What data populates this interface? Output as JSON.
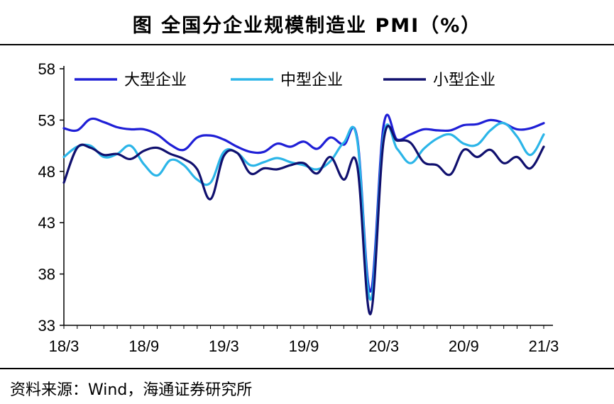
{
  "title": "图  全国分企业规模制造业 PMI（%）",
  "source": "资料来源：Wind，海通证券研究所",
  "chart_data": {
    "type": "line",
    "ylim": [
      33,
      58
    ],
    "yticks": [
      "33",
      "38",
      "43",
      "48",
      "53",
      "58"
    ],
    "xticks": [
      "18/3",
      "18/9",
      "19/3",
      "19/9",
      "20/3",
      "20/9",
      "21/3"
    ],
    "x": [
      "18/3",
      "18/4",
      "18/5",
      "18/6",
      "18/7",
      "18/8",
      "18/9",
      "18/10",
      "18/11",
      "18/12",
      "19/1",
      "19/2",
      "19/3",
      "19/4",
      "19/5",
      "19/6",
      "19/7",
      "19/8",
      "19/9",
      "19/10",
      "19/11",
      "19/12",
      "20/1",
      "20/2",
      "20/3",
      "20/4",
      "20/5",
      "20/6",
      "20/7",
      "20/8",
      "20/9",
      "20/10",
      "20/11",
      "20/12",
      "21/1",
      "21/2",
      "21/3"
    ],
    "legend_position": "top",
    "series": [
      {
        "name": "大型企业",
        "color": "#1f1fd6",
        "values": [
          52.2,
          52.0,
          53.1,
          52.8,
          52.3,
          52.1,
          52.1,
          51.6,
          50.6,
          50.1,
          51.3,
          51.5,
          51.1,
          50.4,
          49.9,
          49.9,
          50.7,
          50.4,
          50.9,
          50.2,
          51.3,
          50.6,
          51.3,
          36.3,
          52.6,
          51.1,
          51.6,
          52.1,
          52.0,
          52.0,
          52.5,
          52.6,
          53.0,
          52.7,
          52.1,
          52.2,
          52.7
        ]
      },
      {
        "name": "中型企业",
        "color": "#2bb5e8",
        "values": [
          49.4,
          50.4,
          50.5,
          49.4,
          49.7,
          50.5,
          48.7,
          47.6,
          49.1,
          48.6,
          47.2,
          46.9,
          49.9,
          49.8,
          48.6,
          48.9,
          49.3,
          48.9,
          48.6,
          48.2,
          49.0,
          50.8,
          51.1,
          35.5,
          51.6,
          50.2,
          48.8,
          50.2,
          51.2,
          51.6,
          50.7,
          50.6,
          52.0,
          52.7,
          51.4,
          49.6,
          51.6
        ]
      },
      {
        "name": "小型企业",
        "color": "#10106e",
        "values": [
          46.9,
          50.3,
          50.3,
          49.6,
          49.7,
          49.2,
          50.0,
          50.3,
          49.7,
          49.2,
          48.2,
          45.3,
          49.5,
          49.8,
          47.8,
          48.3,
          48.2,
          48.6,
          48.8,
          47.8,
          49.4,
          47.2,
          48.6,
          34.1,
          51.1,
          51.0,
          50.8,
          48.9,
          48.6,
          47.7,
          50.1,
          49.4,
          50.1,
          48.8,
          49.4,
          48.3,
          50.4
        ]
      }
    ]
  }
}
